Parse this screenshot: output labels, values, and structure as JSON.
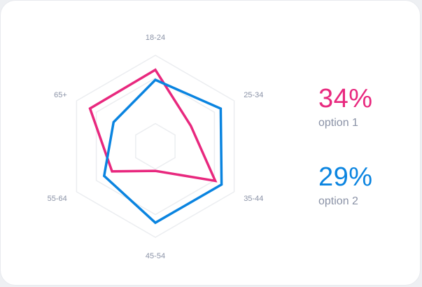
{
  "chart_data": {
    "type": "radar",
    "categories": [
      "18-24",
      "25-34",
      "35-44",
      "45-54",
      "55-64",
      "65+"
    ],
    "rmax": 100,
    "grid_levels": [
      25,
      75,
      100
    ],
    "series": [
      {
        "name": "option 1",
        "color": "#e8287e",
        "values": [
          84,
          45,
          76,
          27,
          55,
          83
        ]
      },
      {
        "name": "option 2",
        "color": "#0a84e0",
        "values": [
          73,
          83,
          84,
          84,
          65,
          53
        ]
      }
    ]
  },
  "stats": [
    {
      "value": "34%",
      "label": "option 1",
      "color": "#e8287e"
    },
    {
      "value": "29%",
      "label": "option 2",
      "color": "#0a84e0"
    }
  ]
}
